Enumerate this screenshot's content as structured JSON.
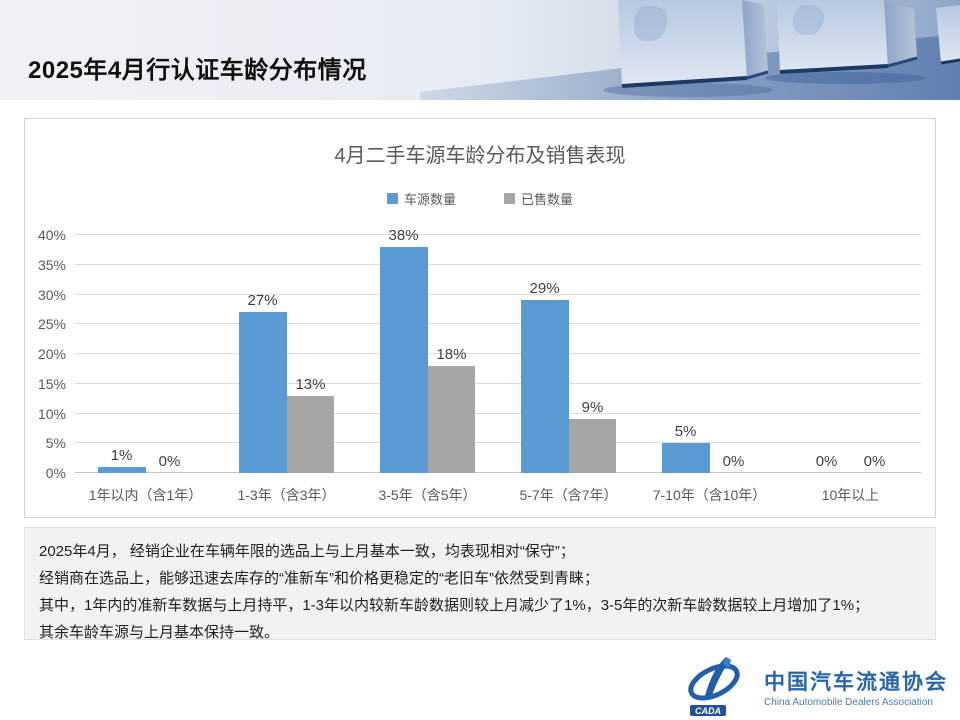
{
  "page": {
    "title": "2025年4月行认证车龄分布情况"
  },
  "chart_data": {
    "type": "bar",
    "title": "4月二手车源车龄分布及销售表现",
    "categories": [
      "1年以内（含1年）",
      "1-3年（含3年）",
      "3-5年（含5年）",
      "5-7年（含7年）",
      "7-10年（含10年）",
      "10年以上"
    ],
    "series": [
      {
        "name": "车源数量",
        "color": "#5B9BD5",
        "values": [
          1,
          27,
          38,
          29,
          5,
          0
        ]
      },
      {
        "name": "已售数量",
        "color": "#A6A6A6",
        "values": [
          0,
          13,
          18,
          9,
          0,
          0
        ]
      }
    ],
    "xlabel": "",
    "ylabel": "",
    "ylim": [
      0,
      40
    ],
    "ytick_step": 5,
    "ytick_suffix": "%",
    "value_suffix": "%",
    "grid": true,
    "legend_position": "top"
  },
  "summary": {
    "lines": [
      "2025年4月， 经销企业在车辆年限的选品上与上月基本一致，均表现相对“保守”；",
      "经销商在选品上，能够迅速去库存的“准新车”和价格更稳定的“老旧车”依然受到青睐；",
      "其中，1年内的准新车数据与上月持平，1-3年以内较新车龄数据则较上月减少了1%，3-5年的次新车龄数据较上月增加了1%；",
      "其余车龄车源与上月基本保持一致。"
    ]
  },
  "footer": {
    "org_name_cn": "中国汽车流通协会",
    "org_name_en": "China Automobile Dealers Association",
    "logo_badge": "CADA",
    "logo_color": "#2160A8"
  }
}
